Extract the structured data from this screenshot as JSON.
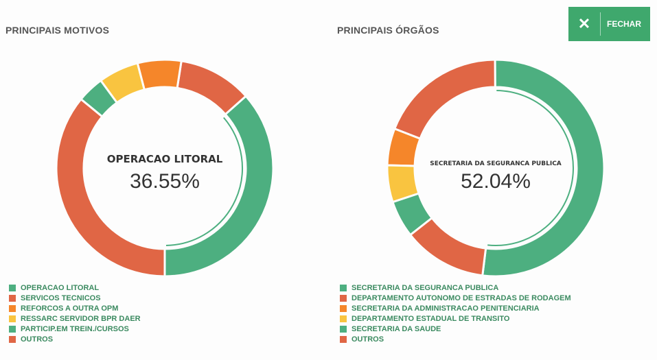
{
  "close_button": {
    "icon": "close-icon",
    "label": "FECHAR"
  },
  "colors": {
    "green": "#4daf80",
    "red": "#e06645",
    "orange": "#f5862a",
    "yellow": "#f9c440",
    "legend_text": "#3b8a60"
  },
  "chart_data": [
    {
      "type": "pie",
      "title": "PRINCIPAIS MOTIVOS",
      "center_label": "OPERACAO LITORAL",
      "center_value": "36.55%",
      "categories": [
        "OPERACAO LITORAL",
        "SERVICOS TECNICOS",
        "REFORCOS A OUTRA OPM",
        "RESSARC SERVIDOR BPR DAER",
        "PARTICIP.EM TREIN./CURSOS",
        "OUTROS"
      ],
      "values": [
        36.55,
        11.0,
        6.5,
        6.0,
        4.0,
        35.95
      ],
      "colors": [
        "#4daf80",
        "#e06645",
        "#f5862a",
        "#f9c440",
        "#4daf80",
        "#e06645"
      ],
      "legend_position": "bottom-left"
    },
    {
      "type": "pie",
      "title": "PRINCIPAIS ÓRGÃOS",
      "center_label": "SECRETARIA DA SEGURANCA PUBLICA",
      "center_value": "52.04%",
      "categories": [
        "SECRETARIA DA SEGURANCA PUBLICA",
        "DEPARTAMENTO AUTONOMO DE ESTRADAS DE RODAGEM",
        "SECRETARIA DA ADMINISTRACAO PENITENCIARIA",
        "DEPARTAMENTO ESTADUAL DE TRANSITO",
        "SECRETARIA DA SAUDE",
        "OUTROS"
      ],
      "values": [
        52.04,
        19.0,
        5.5,
        5.5,
        5.5,
        12.46
      ],
      "colors": [
        "#4daf80",
        "#e06645",
        "#f5862a",
        "#f9c440",
        "#4daf80",
        "#e06645"
      ],
      "legend_position": "bottom-left"
    }
  ]
}
